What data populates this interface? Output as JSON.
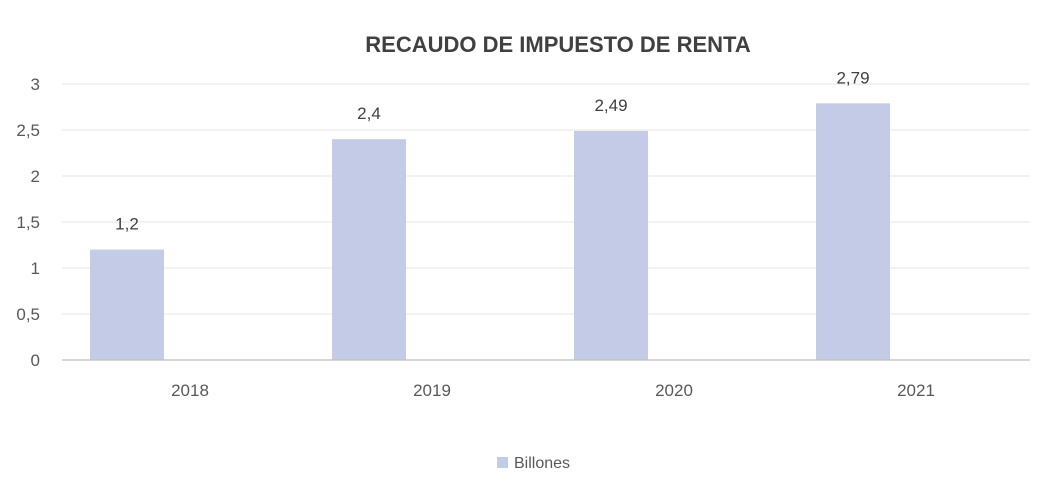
{
  "chart_data": {
    "type": "bar",
    "title": "RECAUDO DE IMPUESTO DE RENTA",
    "categories": [
      "2018",
      "2019",
      "2020",
      "2021"
    ],
    "series": [
      {
        "name": "Billones",
        "values": [
          1.2,
          2.4,
          2.49,
          2.79
        ],
        "data_labels": [
          "1,2",
          "2,4",
          "2,49",
          "2,79"
        ],
        "color": "#c4cbe7"
      }
    ],
    "xlabel": "",
    "ylabel": "",
    "ylim": [
      0,
      3
    ],
    "yticks": [
      0,
      0.5,
      1,
      1.5,
      2,
      2.5,
      3
    ],
    "ytick_labels": [
      "0",
      "0,5",
      "1",
      "1,5",
      "2",
      "2,5",
      "3"
    ],
    "grid": true,
    "legend_position": "bottom"
  }
}
